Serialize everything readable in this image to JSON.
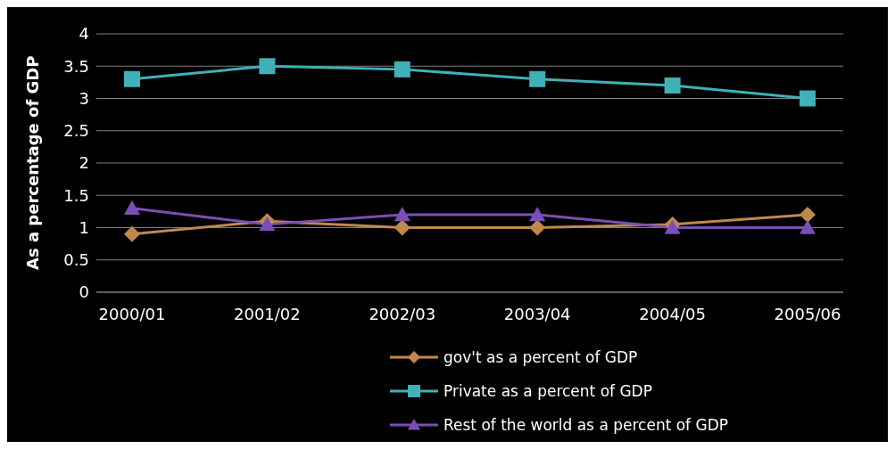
{
  "chart_data": {
    "type": "line",
    "ylabel": "As a percentage of GDP",
    "categories": [
      "2000/01",
      "2001/02",
      "2002/03",
      "2003/04",
      "2004/05",
      "2005/06"
    ],
    "series": [
      {
        "name": "gov't as a percent of GDP",
        "color": "#c0894b",
        "marker": "diamond",
        "values": [
          0.9,
          1.1,
          1.0,
          1.0,
          1.05,
          1.2
        ]
      },
      {
        "name": "Private as a percent of GDP",
        "color": "#3fb1b8",
        "marker": "square",
        "values": [
          3.3,
          3.5,
          3.45,
          3.3,
          3.2,
          3.0
        ]
      },
      {
        "name": "Rest of the world as a percent of GDP",
        "color": "#7a4fb5",
        "marker": "triangle",
        "values": [
          1.3,
          1.05,
          1.2,
          1.2,
          1.0,
          1.0
        ]
      }
    ],
    "ylim": [
      0,
      4
    ],
    "yticks": [
      0,
      0.5,
      1,
      1.5,
      2,
      2.5,
      3,
      3.5,
      4
    ],
    "grid": "y",
    "legend": "bottom"
  }
}
